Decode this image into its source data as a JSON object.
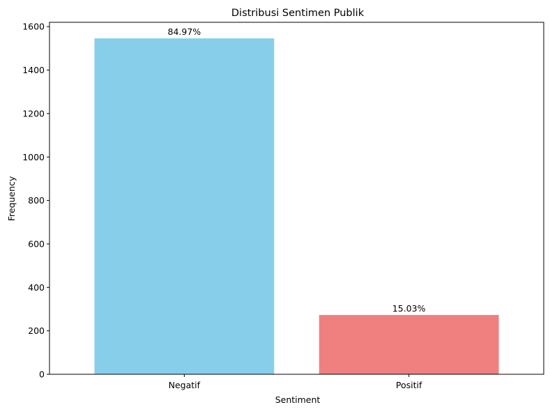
{
  "chart_data": {
    "type": "bar",
    "title": "Distribusi Sentimen Publik",
    "xlabel": "Sentiment",
    "ylabel": "Frequency",
    "categories": [
      "Negatif",
      "Positif"
    ],
    "values": [
      1546,
      273
    ],
    "bar_labels": [
      "84.97%",
      "15.03%"
    ],
    "colors": [
      "#87ceeb",
      "#f08080"
    ],
    "ylim": [
      0,
      1620
    ],
    "yticks": [
      0,
      200,
      400,
      600,
      800,
      1000,
      1200,
      1400,
      1600
    ],
    "grid": false,
    "legend": "none"
  }
}
